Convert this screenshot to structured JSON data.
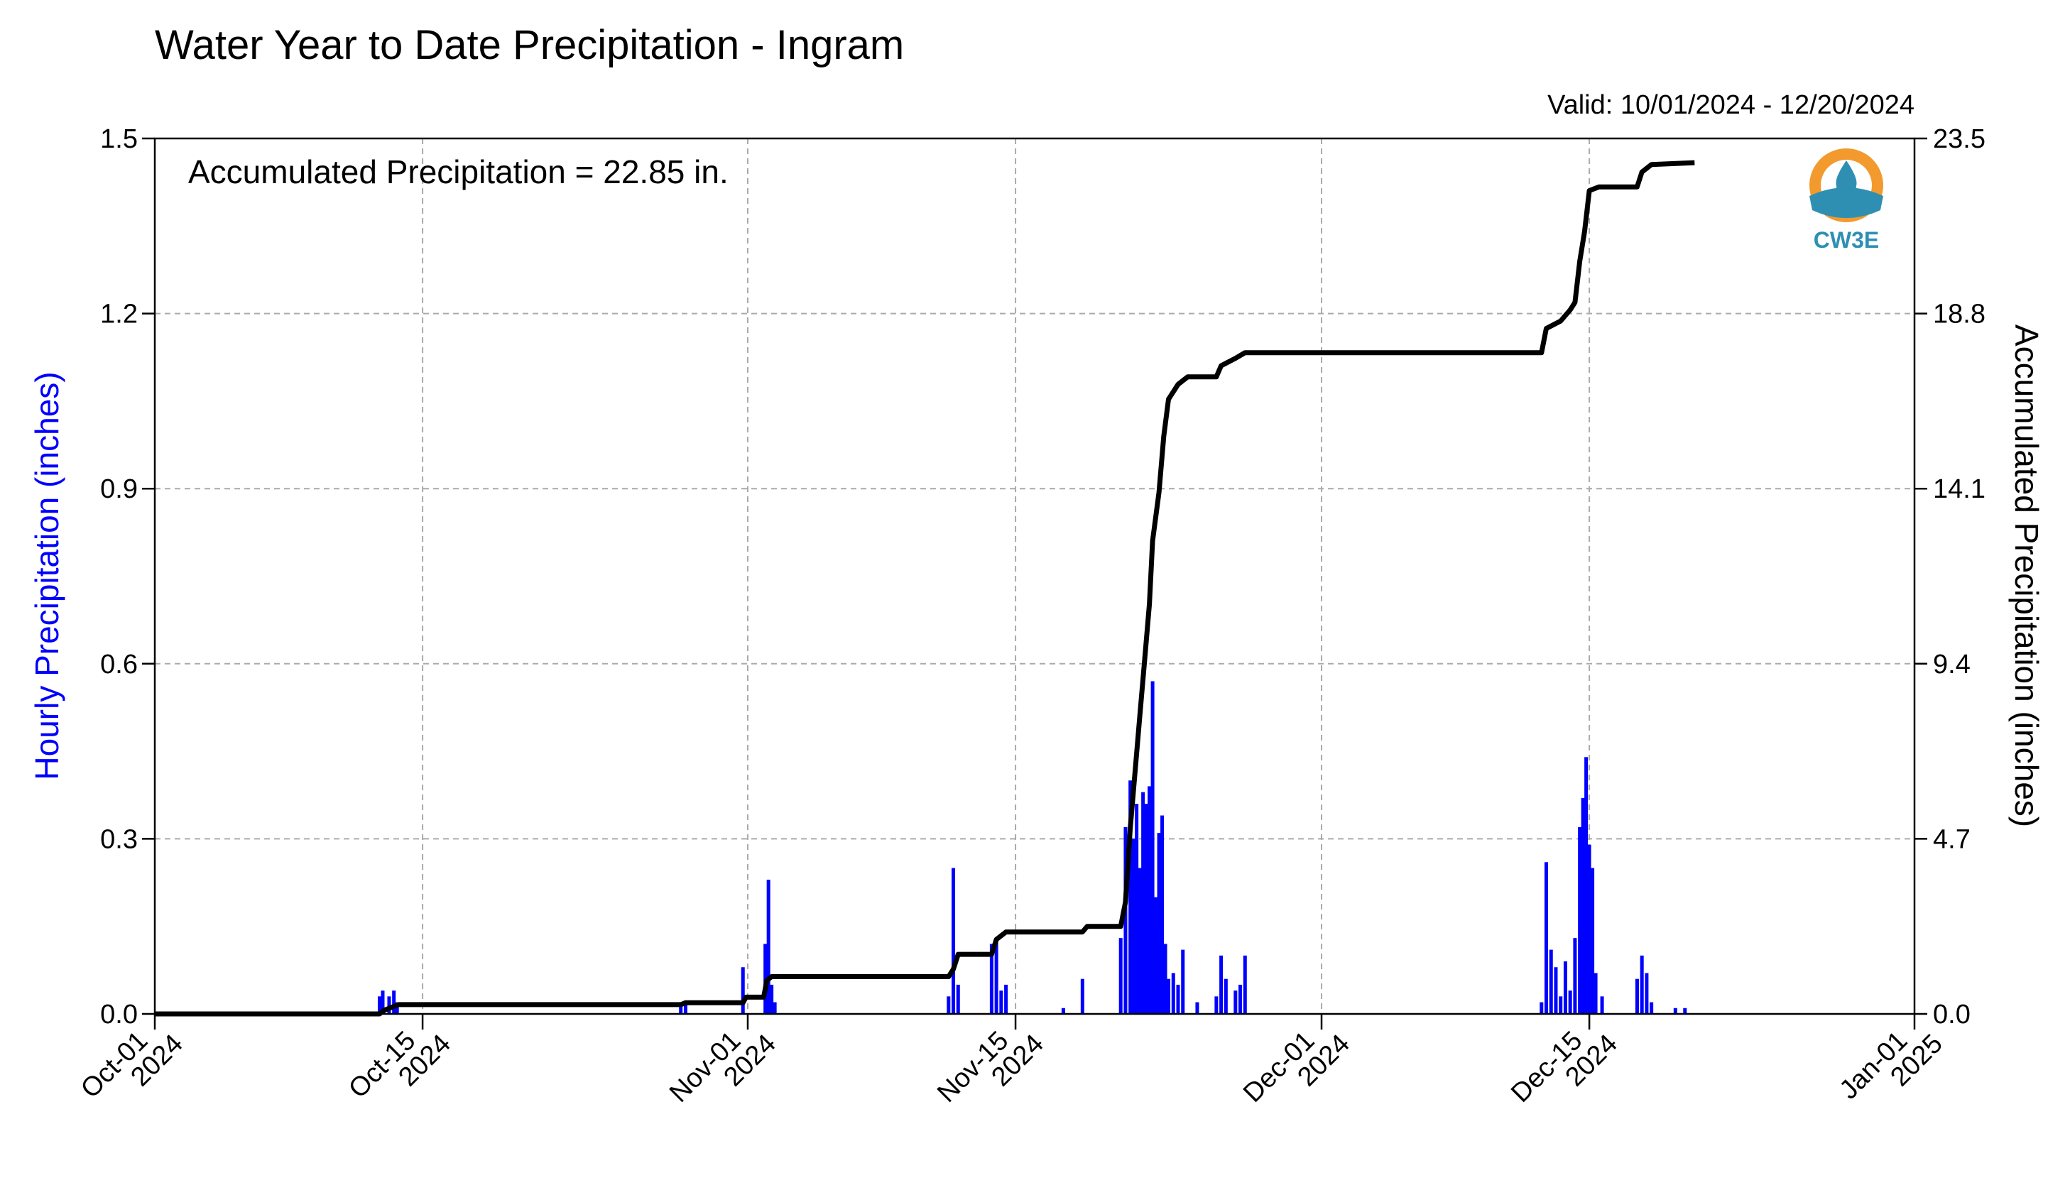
{
  "chart_data": {
    "type": "bar+line",
    "title": "Water Year to Date Precipitation - Ingram",
    "subtitle": "Valid: 10/01/2024 - 12/20/2024",
    "annotation": "Accumulated Precipitation = 22.85 in.",
    "logo_text": "CW3E",
    "y_left": {
      "label": "Hourly Precipitation (inches)",
      "range": [
        0,
        1.5
      ],
      "ticks": [
        "0.0",
        "0.3",
        "0.6",
        "0.9",
        "1.2",
        "1.5"
      ],
      "color": "#0000ff"
    },
    "y_right": {
      "label": "Accumulated Precipitation (inches)",
      "range": [
        0,
        23.5
      ],
      "ticks": [
        "0.0",
        "4.7",
        "9.4",
        "14.1",
        "18.8",
        "23.5"
      ]
    },
    "x_axis": {
      "range": [
        "2024-10-01",
        "2025-01-01"
      ],
      "ticks": [
        {
          "date": "2024-10-01",
          "label1": "Oct-01",
          "label2": "2024"
        },
        {
          "date": "2024-10-15",
          "label1": "Oct-15",
          "label2": "2024"
        },
        {
          "date": "2024-11-01",
          "label1": "Nov-01",
          "label2": "2024"
        },
        {
          "date": "2024-11-15",
          "label1": "Nov-15",
          "label2": "2024"
        },
        {
          "date": "2024-12-01",
          "label1": "Dec-01",
          "label2": "2024"
        },
        {
          "date": "2024-12-15",
          "label1": "Dec-15",
          "label2": "2024"
        },
        {
          "date": "2025-01-01",
          "label1": "Jan-01",
          "label2": "2025"
        }
      ]
    },
    "grid": true,
    "series": [
      {
        "name": "Hourly Precipitation",
        "type": "bar",
        "color": "#0000ff",
        "points": [
          [
            "2024-10-12 18:00",
            0.03
          ],
          [
            "2024-10-12 22:00",
            0.04
          ],
          [
            "2024-10-13 06:00",
            0.03
          ],
          [
            "2024-10-13 12:00",
            0.04
          ],
          [
            "2024-10-13 16:00",
            0.02
          ],
          [
            "2024-10-28 12:00",
            0.02
          ],
          [
            "2024-10-28 18:00",
            0.02
          ],
          [
            "2024-10-31 18:00",
            0.08
          ],
          [
            "2024-11-01 22:00",
            0.12
          ],
          [
            "2024-11-02 02:00",
            0.23
          ],
          [
            "2024-11-02 06:00",
            0.05
          ],
          [
            "2024-11-02 10:00",
            0.02
          ],
          [
            "2024-11-11 12:00",
            0.03
          ],
          [
            "2024-11-11 18:00",
            0.25
          ],
          [
            "2024-11-12 00:00",
            0.05
          ],
          [
            "2024-11-13 18:00",
            0.12
          ],
          [
            "2024-11-14 00:00",
            0.13
          ],
          [
            "2024-11-14 06:00",
            0.04
          ],
          [
            "2024-11-14 12:00",
            0.05
          ],
          [
            "2024-11-17 12:00",
            0.01
          ],
          [
            "2024-11-18 12:00",
            0.06
          ],
          [
            "2024-11-20 12:00",
            0.13
          ],
          [
            "2024-11-20 18:00",
            0.32
          ],
          [
            "2024-11-21 00:00",
            0.4
          ],
          [
            "2024-11-21 04:00",
            0.3
          ],
          [
            "2024-11-21 08:00",
            0.36
          ],
          [
            "2024-11-21 12:00",
            0.25
          ],
          [
            "2024-11-21 16:00",
            0.38
          ],
          [
            "2024-11-21 20:00",
            0.36
          ],
          [
            "2024-11-22 00:00",
            0.39
          ],
          [
            "2024-11-22 04:00",
            0.57
          ],
          [
            "2024-11-22 08:00",
            0.2
          ],
          [
            "2024-11-22 12:00",
            0.31
          ],
          [
            "2024-11-22 16:00",
            0.34
          ],
          [
            "2024-11-22 20:00",
            0.12
          ],
          [
            "2024-11-23 00:00",
            0.06
          ],
          [
            "2024-11-23 06:00",
            0.07
          ],
          [
            "2024-11-23 12:00",
            0.05
          ],
          [
            "2024-11-23 18:00",
            0.11
          ],
          [
            "2024-11-24 12:00",
            0.02
          ],
          [
            "2024-11-25 12:00",
            0.03
          ],
          [
            "2024-11-25 18:00",
            0.1
          ],
          [
            "2024-11-26 00:00",
            0.06
          ],
          [
            "2024-11-26 12:00",
            0.04
          ],
          [
            "2024-11-26 18:00",
            0.05
          ],
          [
            "2024-11-27 00:00",
            0.1
          ],
          [
            "2024-12-12 12:00",
            0.02
          ],
          [
            "2024-12-12 18:00",
            0.26
          ],
          [
            "2024-12-13 00:00",
            0.11
          ],
          [
            "2024-12-13 06:00",
            0.08
          ],
          [
            "2024-12-13 12:00",
            0.03
          ],
          [
            "2024-12-13 18:00",
            0.09
          ],
          [
            "2024-12-14 00:00",
            0.04
          ],
          [
            "2024-12-14 06:00",
            0.13
          ],
          [
            "2024-12-14 12:00",
            0.32
          ],
          [
            "2024-12-14 16:00",
            0.37
          ],
          [
            "2024-12-14 20:00",
            0.44
          ],
          [
            "2024-12-15 00:00",
            0.29
          ],
          [
            "2024-12-15 04:00",
            0.25
          ],
          [
            "2024-12-15 08:00",
            0.07
          ],
          [
            "2024-12-15 16:00",
            0.03
          ],
          [
            "2024-12-17 12:00",
            0.06
          ],
          [
            "2024-12-17 18:00",
            0.1
          ],
          [
            "2024-12-18 00:00",
            0.07
          ],
          [
            "2024-12-18 06:00",
            0.02
          ],
          [
            "2024-12-19 12:00",
            0.01
          ],
          [
            "2024-12-20 00:00",
            0.01
          ]
        ]
      },
      {
        "name": "Accumulated Precipitation",
        "type": "line",
        "axis": "right",
        "color": "#000000",
        "points": [
          [
            "2024-10-01 00:00",
            0.0
          ],
          [
            "2024-10-12 18:00",
            0.0
          ],
          [
            "2024-10-13 00:00",
            0.1
          ],
          [
            "2024-10-13 12:00",
            0.2
          ],
          [
            "2024-10-13 18:00",
            0.25
          ],
          [
            "2024-10-28 12:00",
            0.25
          ],
          [
            "2024-10-28 18:00",
            0.3
          ],
          [
            "2024-10-31 18:00",
            0.3
          ],
          [
            "2024-10-31 22:00",
            0.45
          ],
          [
            "2024-11-01 20:00",
            0.45
          ],
          [
            "2024-11-02 00:00",
            0.9
          ],
          [
            "2024-11-02 06:00",
            1.0
          ],
          [
            "2024-11-11 12:00",
            1.0
          ],
          [
            "2024-11-11 18:00",
            1.2
          ],
          [
            "2024-11-12 00:00",
            1.6
          ],
          [
            "2024-11-13 18:00",
            1.6
          ],
          [
            "2024-11-14 00:00",
            2.0
          ],
          [
            "2024-11-14 12:00",
            2.2
          ],
          [
            "2024-11-18 12:00",
            2.2
          ],
          [
            "2024-11-18 18:00",
            2.35
          ],
          [
            "2024-11-20 12:00",
            2.35
          ],
          [
            "2024-11-20 18:00",
            3.0
          ],
          [
            "2024-11-21 00:00",
            5.0
          ],
          [
            "2024-11-21 06:00",
            6.5
          ],
          [
            "2024-11-21 12:00",
            8.0
          ],
          [
            "2024-11-21 18:00",
            9.5
          ],
          [
            "2024-11-22 00:00",
            11.0
          ],
          [
            "2024-11-22 04:00",
            12.7
          ],
          [
            "2024-11-22 12:00",
            14.0
          ],
          [
            "2024-11-22 18:00",
            15.5
          ],
          [
            "2024-11-23 00:00",
            16.5
          ],
          [
            "2024-11-23 12:00",
            16.9
          ],
          [
            "2024-11-24 00:00",
            17.1
          ],
          [
            "2024-11-25 12:00",
            17.1
          ],
          [
            "2024-11-25 18:00",
            17.4
          ],
          [
            "2024-11-26 12:00",
            17.6
          ],
          [
            "2024-11-27 00:00",
            17.75
          ],
          [
            "2024-12-12 12:00",
            17.75
          ],
          [
            "2024-12-12 18:00",
            18.4
          ],
          [
            "2024-12-13 12:00",
            18.6
          ],
          [
            "2024-12-14 00:00",
            18.9
          ],
          [
            "2024-12-14 06:00",
            19.1
          ],
          [
            "2024-12-14 12:00",
            20.2
          ],
          [
            "2024-12-14 18:00",
            21.0
          ],
          [
            "2024-12-15 00:00",
            22.1
          ],
          [
            "2024-12-15 12:00",
            22.2
          ],
          [
            "2024-12-17 12:00",
            22.2
          ],
          [
            "2024-12-17 18:00",
            22.6
          ],
          [
            "2024-12-18 06:00",
            22.8
          ],
          [
            "2024-12-20 12:00",
            22.85
          ]
        ]
      }
    ]
  }
}
